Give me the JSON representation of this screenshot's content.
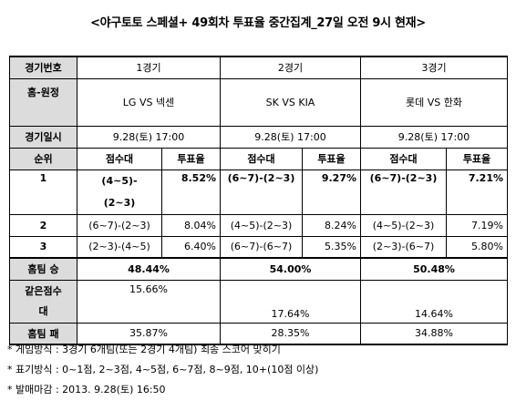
{
  "title": "<야구토토 스페셜+ 49회차 투표율 중간집계_27일 오전 9시 현재>",
  "table": {
    "row_labels": {
      "game_no": "경기번호",
      "home_away": "홈-원정",
      "date": "경기일시",
      "rank": "순위",
      "home_win": "홈팀 승",
      "same_score": "같은점수",
      "same_score_2": "대",
      "home_lose": "홈팀 패"
    },
    "col_header": {
      "range": "점수대",
      "rate": "투표율"
    },
    "games": [
      {
        "no": "1경기",
        "matchup": "LG VS 넥센",
        "date": "9.28(토) 17:00",
        "ranks": [
          {
            "range": "(4~5)-(2~3)",
            "rate": "8.52%"
          },
          {
            "range": "(6~7)-(2~3)",
            "rate": "8.04%"
          },
          {
            "range": "(2~3)-(4~5)",
            "rate": "6.40%"
          }
        ],
        "home_win": "48.44%",
        "same_score": "15.66%",
        "home_lose": "35.87%"
      },
      {
        "no": "2경기",
        "matchup": "SK VS KIA",
        "date": "9.28(토) 17:00",
        "ranks": [
          {
            "range": "(6~7)-(2~3)",
            "rate": "9.27%"
          },
          {
            "range": "(4~5)-(2~3)",
            "rate": "8.24%"
          },
          {
            "range": "(6~7)-(6~7)",
            "rate": "5.35%"
          }
        ],
        "home_win": "54.00%",
        "same_score": "17.64%",
        "home_lose": "28.35%"
      },
      {
        "no": "3경기",
        "matchup": "롯데 VS 한화",
        "date": "9.28(토) 17:00",
        "ranks": [
          {
            "range": "(6~7)-(2~3)",
            "rate": "7.21%"
          },
          {
            "range": "(4~5)-(2~3)",
            "rate": "7.19%"
          },
          {
            "range": "(2~3)-(6~7)",
            "rate": "5.80%"
          }
        ],
        "home_win": "50.48%",
        "same_score": "14.64%",
        "home_lose": "34.88%"
      }
    ],
    "rank_numbers": [
      "1",
      "2",
      "3"
    ],
    "rank1_range_line1": "(4~5)-",
    "rank1_range_line2": "(2~3)"
  },
  "notes": [
    "* 게임방식 : 3경기 6개팀(또는 2경기 4개팀) 최종 스코어 맞히기",
    "* 표기방식 : 0~1점, 2~3점, 4~5점, 6~7점, 8~9점, 10+(10점 이상)",
    "* 발매마감 : 2013. 9.28(토) 16:50"
  ]
}
